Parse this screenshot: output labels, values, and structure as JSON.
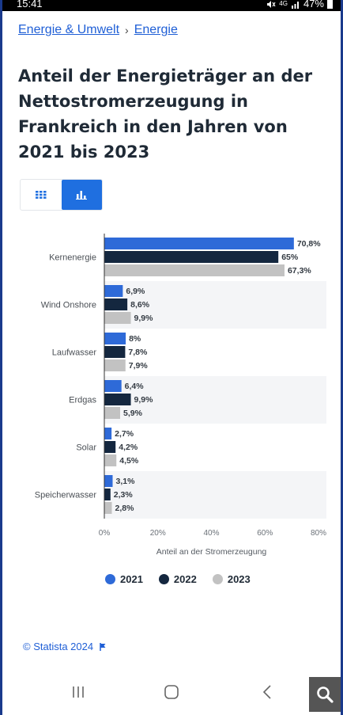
{
  "statusbar": {
    "time": "15:41",
    "network": "4G",
    "battery": "47%"
  },
  "breadcrumb": {
    "level1": "Energie & Umwelt",
    "separator": "›",
    "level2": "Energie"
  },
  "page_title": "Anteil der Energieträger an der Nettostromerzeugung in Frankreich in den Jahren von 2021 bis 2023",
  "view_toggle": {
    "options": [
      "table-icon",
      "bar-chart-icon"
    ],
    "active": 1
  },
  "colors": {
    "2021": "#2e6ad8",
    "2022": "#14273f",
    "2023": "#c2c2c2",
    "accent": "#1f6fe0"
  },
  "chart_data": {
    "type": "bar",
    "orientation": "horizontal",
    "categories": [
      "Kernenergie",
      "Wind Onshore",
      "Laufwasser",
      "Erdgas",
      "Solar",
      "Speicherwasser"
    ],
    "series": [
      {
        "name": "2021",
        "values": [
          70.8,
          6.9,
          8,
          6.4,
          2.7,
          3.1
        ],
        "labels": [
          "70,8%",
          "6,9%",
          "8%",
          "6,4%",
          "2,7%",
          "3,1%"
        ]
      },
      {
        "name": "2022",
        "values": [
          65,
          8.6,
          7.8,
          9.9,
          4.2,
          2.3
        ],
        "labels": [
          "65%",
          "8,6%",
          "7,8%",
          "9,9%",
          "4,2%",
          "2,3%"
        ]
      },
      {
        "name": "2023",
        "values": [
          67.3,
          9.9,
          7.9,
          5.9,
          4.5,
          2.8
        ],
        "labels": [
          "67,3%",
          "9,9%",
          "7,9%",
          "5,9%",
          "4,5%",
          "2,8%"
        ]
      }
    ],
    "xlim": [
      0,
      80
    ],
    "xticks": [
      0,
      20,
      40,
      60,
      80
    ],
    "xtick_labels": [
      "0%",
      "20%",
      "40%",
      "60%",
      "80%"
    ],
    "xlabel": "Anteil an der Stromerzeugung",
    "legend_position": "bottom",
    "grid": false
  },
  "credit": "© Statista 2024"
}
